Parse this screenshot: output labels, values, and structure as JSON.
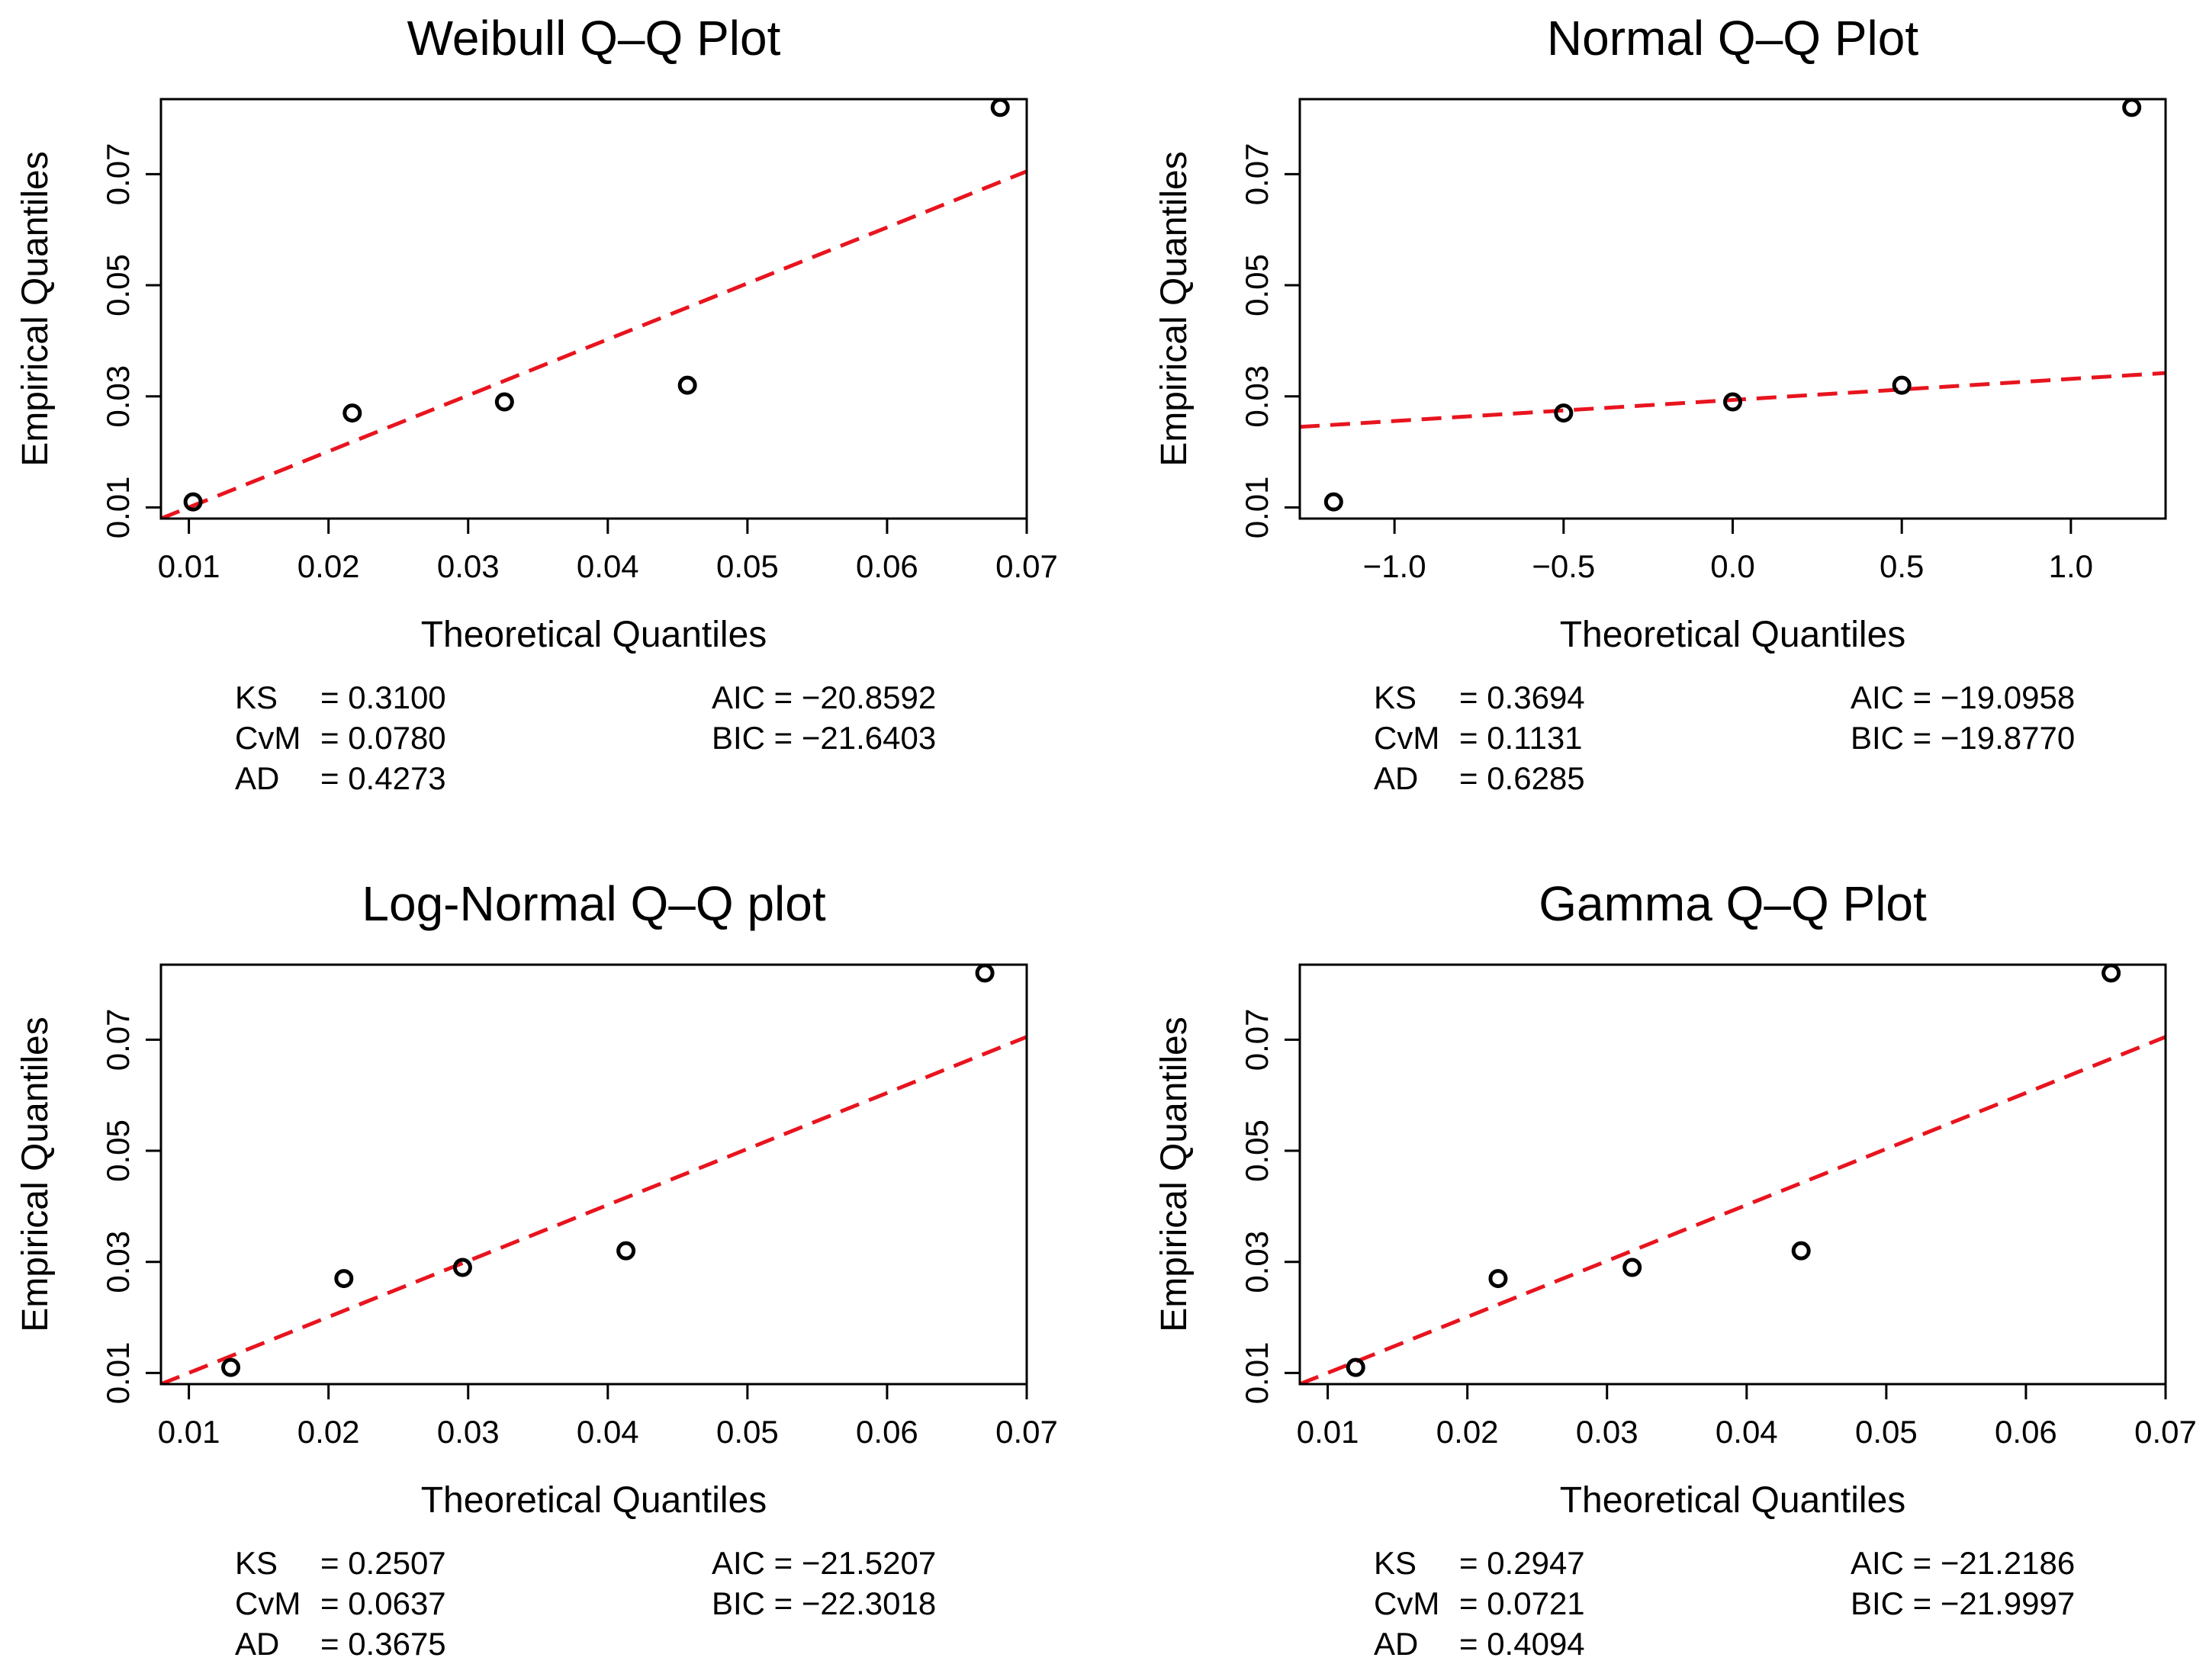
{
  "chart_data": [
    {
      "type": "scatter",
      "title": "Weibull Q–Q Plot",
      "xlabel": "Theoretical Quantiles",
      "ylabel": "Empirical Quantiles",
      "xlim": [
        0.008,
        0.07
      ],
      "ylim": [
        0.008,
        0.0835
      ],
      "xticks": [
        0.01,
        0.02,
        0.03,
        0.04,
        0.05,
        0.06,
        0.07
      ],
      "xtick_labels": [
        "0.01",
        "0.02",
        "0.03",
        "0.04",
        "0.05",
        "0.06",
        "0.07"
      ],
      "yticks": [
        0.01,
        0.03,
        0.05,
        0.07
      ],
      "ytick_labels": [
        "0.01",
        "0.03",
        "0.05",
        "0.07"
      ],
      "points": [
        {
          "x": 0.0103,
          "y": 0.011
        },
        {
          "x": 0.0217,
          "y": 0.027
        },
        {
          "x": 0.0326,
          "y": 0.029
        },
        {
          "x": 0.0457,
          "y": 0.032
        },
        {
          "x": 0.0681,
          "y": 0.082
        }
      ],
      "reference_line": {
        "x": [
          0.008,
          0.07
        ],
        "y": [
          0.008,
          0.0705
        ],
        "color": "#e8141e",
        "style": "dashed"
      },
      "stats_left": [
        {
          "name": "KS",
          "value": "= 0.3100"
        },
        {
          "name": "CvM",
          "value": "= 0.0780"
        },
        {
          "name": "AD",
          "value": "= 0.4273"
        }
      ],
      "stats_right": [
        "AIC = −20.8592",
        "BIC = −21.6403"
      ]
    },
    {
      "type": "scatter",
      "title": "Normal Q–Q Plot",
      "xlabel": "Theoretical Quantiles",
      "ylabel": "Empirical Quantiles",
      "xlim": [
        -1.28,
        1.28
      ],
      "ylim": [
        0.008,
        0.0835
      ],
      "xticks": [
        -1.0,
        -0.5,
        0.0,
        0.5,
        1.0
      ],
      "xtick_labels": [
        "−1.0",
        "−0.5",
        "0.0",
        "0.5",
        "1.0"
      ],
      "yticks": [
        0.01,
        0.03,
        0.05,
        0.07
      ],
      "ytick_labels": [
        "0.01",
        "0.03",
        "0.05",
        "0.07"
      ],
      "points": [
        {
          "x": -1.18,
          "y": 0.011
        },
        {
          "x": -0.5,
          "y": 0.027
        },
        {
          "x": 0.0,
          "y": 0.029
        },
        {
          "x": 0.5,
          "y": 0.032
        },
        {
          "x": 1.18,
          "y": 0.082
        }
      ],
      "reference_line": {
        "x": [
          -1.28,
          1.28
        ],
        "y": [
          0.0245,
          0.0342
        ],
        "color": "#e8141e",
        "style": "dashed"
      },
      "stats_left": [
        {
          "name": "KS",
          "value": "= 0.3694"
        },
        {
          "name": "CvM",
          "value": "= 0.1131"
        },
        {
          "name": "AD",
          "value": "= 0.6285"
        }
      ],
      "stats_right": [
        "AIC = −19.0958",
        "BIC = −19.8770"
      ]
    },
    {
      "type": "scatter",
      "title": "Log-Normal Q–Q plot",
      "xlabel": "Theoretical Quantiles",
      "ylabel": "Empirical Quantiles",
      "xlim": [
        0.008,
        0.07
      ],
      "ylim": [
        0.008,
        0.0835
      ],
      "xticks": [
        0.01,
        0.02,
        0.03,
        0.04,
        0.05,
        0.06,
        0.07
      ],
      "xtick_labels": [
        "0.01",
        "0.02",
        "0.03",
        "0.04",
        "0.05",
        "0.06",
        "0.07"
      ],
      "yticks": [
        0.01,
        0.03,
        0.05,
        0.07
      ],
      "ytick_labels": [
        "0.01",
        "0.03",
        "0.05",
        "0.07"
      ],
      "points": [
        {
          "x": 0.013,
          "y": 0.011
        },
        {
          "x": 0.0211,
          "y": 0.027
        },
        {
          "x": 0.0296,
          "y": 0.029
        },
        {
          "x": 0.0413,
          "y": 0.032
        },
        {
          "x": 0.067,
          "y": 0.082
        }
      ],
      "reference_line": {
        "x": [
          0.008,
          0.07
        ],
        "y": [
          0.008,
          0.0705
        ],
        "color": "#e8141e",
        "style": "dashed"
      },
      "stats_left": [
        {
          "name": "KS",
          "value": "= 0.2507"
        },
        {
          "name": "CvM",
          "value": "= 0.0637"
        },
        {
          "name": "AD",
          "value": "= 0.3675"
        }
      ],
      "stats_right": [
        "AIC = −21.5207",
        "BIC = −22.3018"
      ]
    },
    {
      "type": "scatter",
      "title": "Gamma Q–Q Plot",
      "xlabel": "Theoretical Quantiles",
      "ylabel": "Empirical Quantiles",
      "xlim": [
        0.008,
        0.07
      ],
      "ylim": [
        0.008,
        0.0835
      ],
      "xticks": [
        0.01,
        0.02,
        0.03,
        0.04,
        0.05,
        0.06,
        0.07
      ],
      "xtick_labels": [
        "0.01",
        "0.02",
        "0.03",
        "0.04",
        "0.05",
        "0.06",
        "0.07"
      ],
      "yticks": [
        0.01,
        0.03,
        0.05,
        0.07
      ],
      "ytick_labels": [
        "0.01",
        "0.03",
        "0.05",
        "0.07"
      ],
      "points": [
        {
          "x": 0.012,
          "y": 0.011
        },
        {
          "x": 0.0222,
          "y": 0.027
        },
        {
          "x": 0.0318,
          "y": 0.029
        },
        {
          "x": 0.0439,
          "y": 0.032
        },
        {
          "x": 0.0661,
          "y": 0.082
        }
      ],
      "reference_line": {
        "x": [
          0.008,
          0.07
        ],
        "y": [
          0.008,
          0.0705
        ],
        "color": "#e8141e",
        "style": "dashed"
      },
      "stats_left": [
        {
          "name": "KS",
          "value": "= 0.2947"
        },
        {
          "name": "CvM",
          "value": "= 0.0721"
        },
        {
          "name": "AD",
          "value": "= 0.4094"
        }
      ],
      "stats_right": [
        "AIC = −21.2186",
        "BIC = −21.9997"
      ]
    }
  ]
}
